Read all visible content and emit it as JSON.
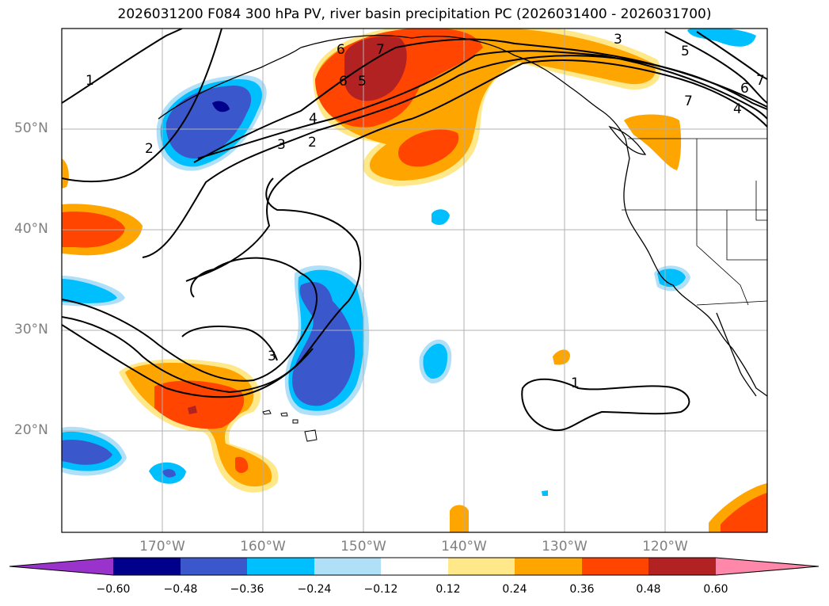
{
  "title": "2026031200 F084 300 hPa PV, river basin precipitation PC (2026031400 - 2026031700)",
  "lat_labels": [
    "50°N",
    "40°N",
    "30°N",
    "20°N"
  ],
  "lon_labels": [
    "170°W",
    "160°W",
    "150°W",
    "140°W",
    "130°W",
    "120°W"
  ],
  "colorbar": {
    "ticks": [
      "−0.60",
      "−0.48",
      "−0.36",
      "−0.24",
      "−0.12",
      "0.12",
      "0.24",
      "0.36",
      "0.48",
      "0.60"
    ],
    "colors": [
      "#9933cc",
      "#00008b",
      "#3a57cc",
      "#00bfff",
      "#b0e0f8",
      "#ffffff",
      "#ffe88a",
      "#ffa500",
      "#ff4500",
      "#b22222",
      "#ff88aa"
    ]
  },
  "contour_labels": [
    "1",
    "2",
    "3",
    "4",
    "5",
    "6",
    "7"
  ]
}
